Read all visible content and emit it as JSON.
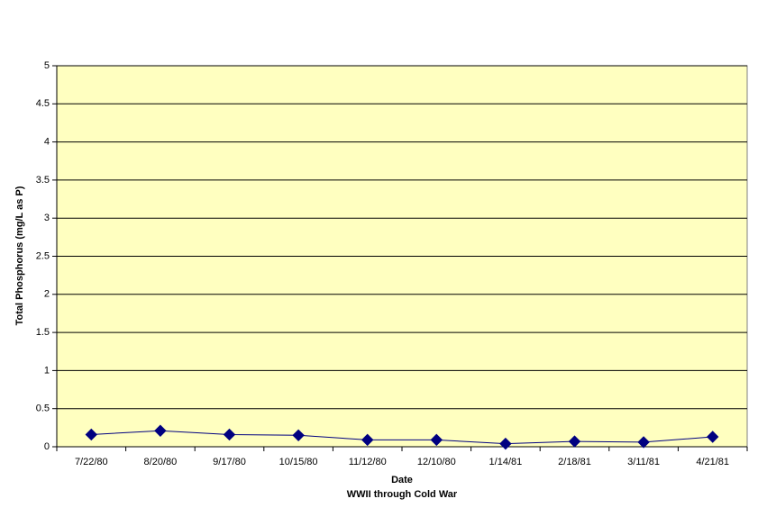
{
  "chart_data": {
    "type": "line",
    "xlabel": "Date",
    "xlabel_line2": "WWII through Cold War",
    "ylabel": "Total Phosphorus (mg/L as P)",
    "categories": [
      "7/22/80",
      "8/20/80",
      "9/17/80",
      "10/15/80",
      "11/12/80",
      "12/10/80",
      "1/14/81",
      "2/18/81",
      "3/11/81",
      "4/21/81"
    ],
    "values": [
      0.16,
      0.21,
      0.16,
      0.15,
      0.09,
      0.09,
      0.04,
      0.07,
      0.06,
      0.13
    ],
    "color": "#000080",
    "plot_background": "#ffffc0",
    "ylim": [
      0,
      5
    ],
    "yticks": [
      0,
      0.5,
      1,
      1.5,
      2,
      2.5,
      3,
      3.5,
      4,
      4.5,
      5
    ],
    "grid": true
  }
}
